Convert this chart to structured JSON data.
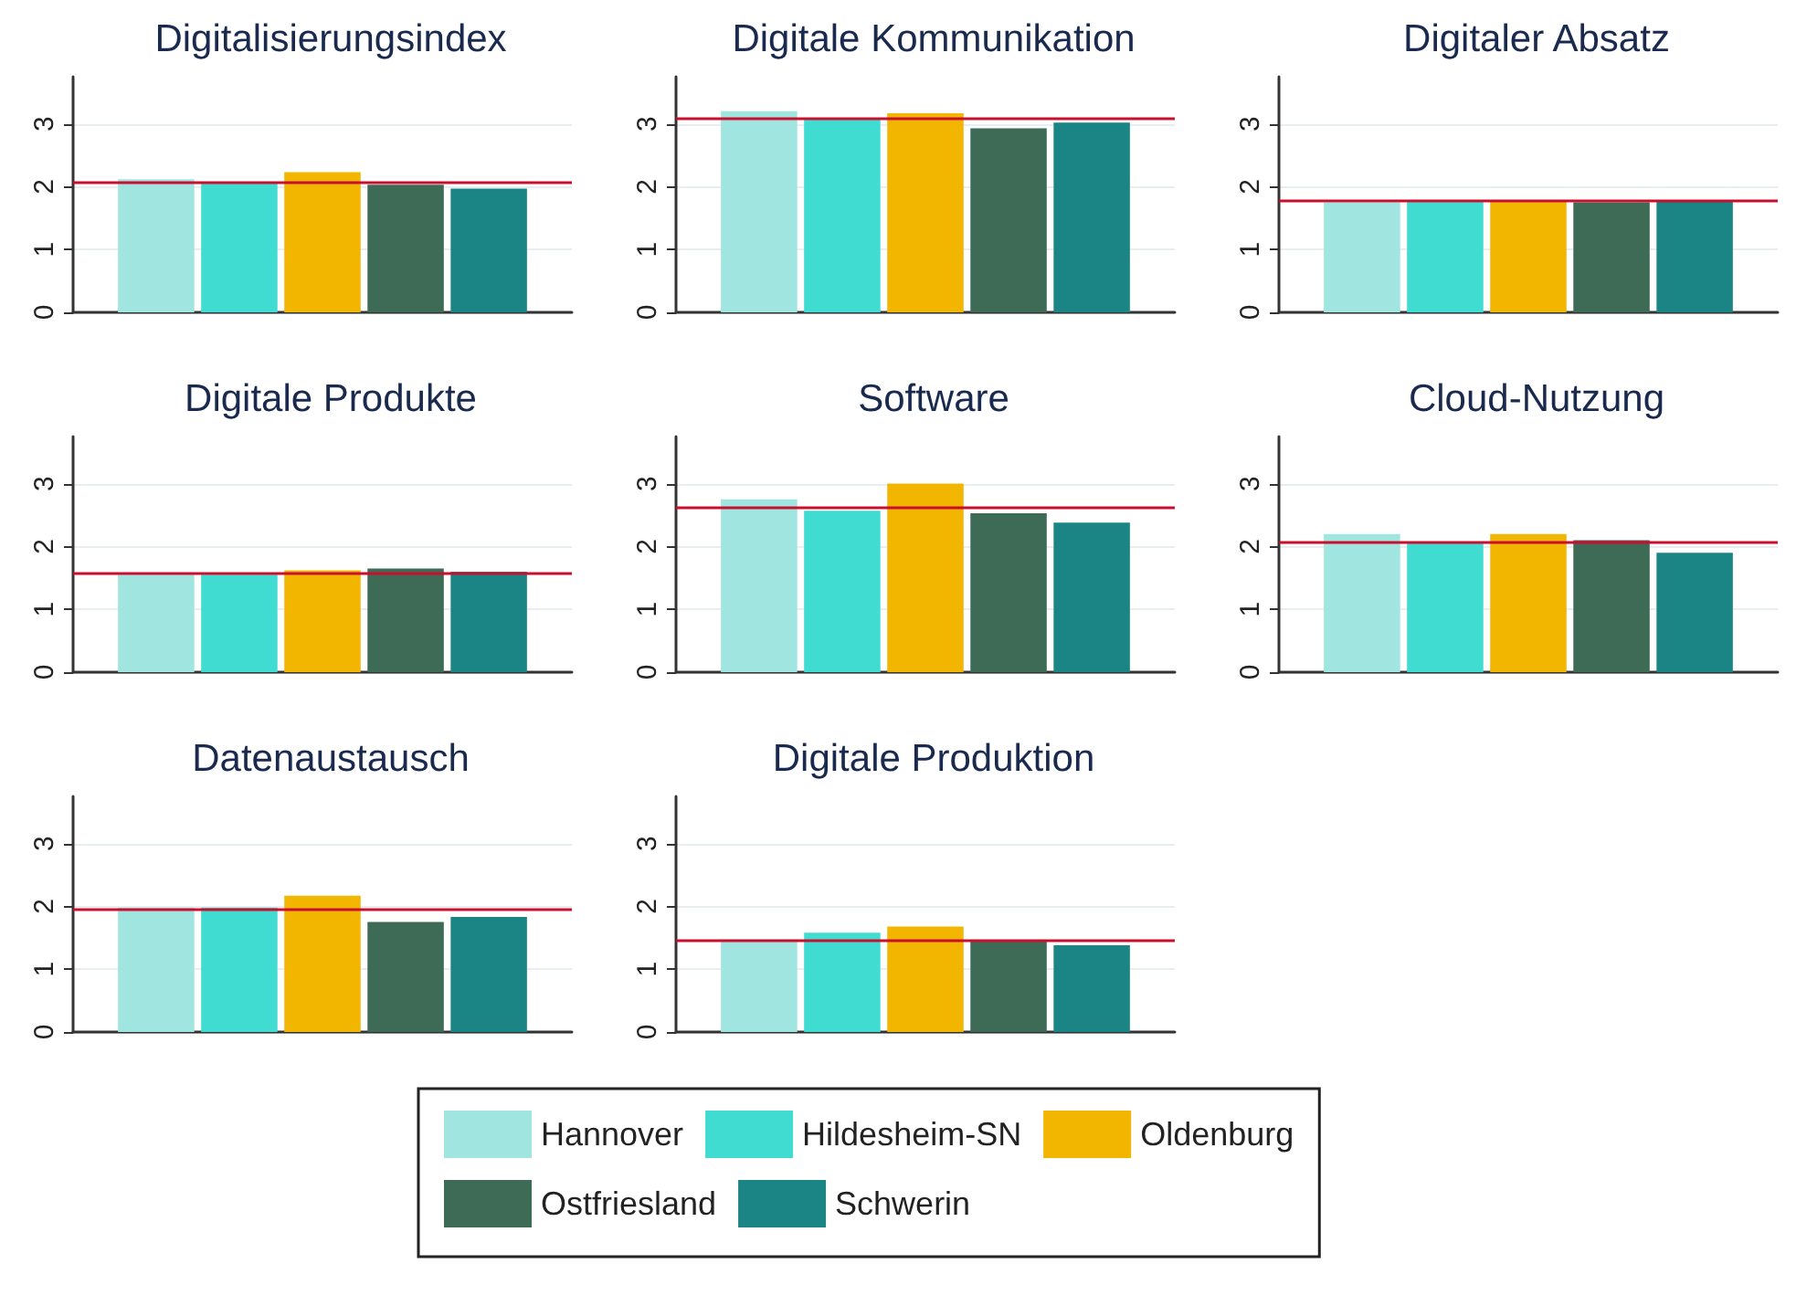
{
  "chart_data": [
    {
      "type": "bar",
      "title": "Digitalisierungsindex",
      "categories": [
        null
      ],
      "legend": "bottom",
      "tick_labels": "y",
      "grid": "y",
      "ylim": [
        0,
        3.75
      ],
      "yticks": [
        0,
        1,
        2,
        3
      ],
      "series": [
        {
          "name": "Hannover",
          "color": "#a0e5e0",
          "values": [
            2.12
          ]
        },
        {
          "name": "Hildesheim-SN",
          "color": "#40dcd2",
          "values": [
            2.08
          ]
        },
        {
          "name": "Oldenburg",
          "color": "#f2b500",
          "values": [
            2.23
          ]
        },
        {
          "name": "Ostfriesland",
          "color": "#3e6b55",
          "values": [
            2.03
          ]
        },
        {
          "name": "Schwerin",
          "color": "#1b8585",
          "values": [
            1.97
          ]
        }
      ],
      "ref_lines": [
        {
          "axis": "y",
          "value": 2.08,
          "color": "#c8102e"
        }
      ]
    },
    {
      "type": "bar",
      "title": "Digitale Kommunikation",
      "categories": [
        null
      ],
      "tick_labels": "y",
      "grid": "y",
      "ylim": [
        0,
        3.75
      ],
      "yticks": [
        0,
        1,
        2,
        3
      ],
      "series": [
        {
          "color": "#a0e5e0",
          "values": [
            3.2
          ]
        },
        {
          "color": "#40dcd2",
          "values": [
            3.07
          ]
        },
        {
          "color": "#f2b500",
          "values": [
            3.17
          ]
        },
        {
          "color": "#3e6b55",
          "values": [
            2.93
          ]
        },
        {
          "color": "#1b8585",
          "values": [
            3.02
          ]
        }
      ],
      "ref_lines": [
        {
          "axis": "y",
          "value": 3.1,
          "color": "#c8102e"
        }
      ]
    },
    {
      "type": "bar",
      "title": "Digitaler Absatz",
      "categories": [
        null
      ],
      "tick_labels": "y",
      "grid": "y",
      "ylim": [
        0,
        3.75
      ],
      "yticks": [
        0,
        1,
        2,
        3
      ],
      "series": [
        {
          "color": "#a0e5e0",
          "values": [
            1.75
          ]
        },
        {
          "color": "#40dcd2",
          "values": [
            1.78
          ]
        },
        {
          "color": "#f2b500",
          "values": [
            1.78
          ]
        },
        {
          "color": "#3e6b55",
          "values": [
            1.75
          ]
        },
        {
          "color": "#1b8585",
          "values": [
            1.78
          ]
        }
      ],
      "ref_lines": [
        {
          "axis": "y",
          "value": 1.77,
          "color": "#c8102e"
        }
      ]
    },
    {
      "type": "bar",
      "title": "Digitale Produkte",
      "categories": [
        null
      ],
      "tick_labels": "y",
      "grid": "y",
      "ylim": [
        0,
        3.75
      ],
      "yticks": [
        0,
        1,
        2,
        3
      ],
      "series": [
        {
          "color": "#a0e5e0",
          "values": [
            1.55
          ]
        },
        {
          "color": "#40dcd2",
          "values": [
            1.55
          ]
        },
        {
          "color": "#f2b500",
          "values": [
            1.62
          ]
        },
        {
          "color": "#3e6b55",
          "values": [
            1.65
          ]
        },
        {
          "color": "#1b8585",
          "values": [
            1.6
          ]
        }
      ],
      "ref_lines": [
        {
          "axis": "y",
          "value": 1.58,
          "color": "#c8102e"
        }
      ]
    },
    {
      "type": "bar",
      "title": "Software",
      "categories": [
        null
      ],
      "tick_labels": "y",
      "grid": "y",
      "ylim": [
        0,
        3.75
      ],
      "yticks": [
        0,
        1,
        2,
        3
      ],
      "series": [
        {
          "color": "#a0e5e0",
          "values": [
            2.75
          ]
        },
        {
          "color": "#40dcd2",
          "values": [
            2.57
          ]
        },
        {
          "color": "#f2b500",
          "values": [
            3.0
          ]
        },
        {
          "color": "#3e6b55",
          "values": [
            2.53
          ]
        },
        {
          "color": "#1b8585",
          "values": [
            2.38
          ]
        }
      ],
      "ref_lines": [
        {
          "axis": "y",
          "value": 2.63,
          "color": "#c8102e"
        }
      ]
    },
    {
      "type": "bar",
      "title": "Cloud-Nutzung",
      "categories": [
        null
      ],
      "tick_labels": "y",
      "grid": "y",
      "ylim": [
        0,
        3.75
      ],
      "yticks": [
        0,
        1,
        2,
        3
      ],
      "series": [
        {
          "color": "#a0e5e0",
          "values": [
            2.2
          ]
        },
        {
          "color": "#40dcd2",
          "values": [
            2.05
          ]
        },
        {
          "color": "#f2b500",
          "values": [
            2.2
          ]
        },
        {
          "color": "#3e6b55",
          "values": [
            2.1
          ]
        },
        {
          "color": "#1b8585",
          "values": [
            1.9
          ]
        }
      ],
      "ref_lines": [
        {
          "axis": "y",
          "value": 2.08,
          "color": "#c8102e"
        }
      ]
    },
    {
      "type": "bar",
      "title": "Datenaustausch",
      "categories": [
        null
      ],
      "tick_labels": "y",
      "grid": "y",
      "ylim": [
        0,
        3.75
      ],
      "yticks": [
        0,
        1,
        2,
        3
      ],
      "series": [
        {
          "color": "#a0e5e0",
          "values": [
            1.98
          ]
        },
        {
          "color": "#40dcd2",
          "values": [
            1.98
          ]
        },
        {
          "color": "#f2b500",
          "values": [
            2.17
          ]
        },
        {
          "color": "#3e6b55",
          "values": [
            1.75
          ]
        },
        {
          "color": "#1b8585",
          "values": [
            1.83
          ]
        }
      ],
      "ref_lines": [
        {
          "axis": "y",
          "value": 1.95,
          "color": "#c8102e"
        }
      ]
    },
    {
      "type": "bar",
      "title": "Digitale Produktion",
      "categories": [
        null
      ],
      "tick_labels": "y",
      "grid": "y",
      "ylim": [
        0,
        3.75
      ],
      "yticks": [
        0,
        1,
        2,
        3
      ],
      "series": [
        {
          "color": "#a0e5e0",
          "values": [
            1.47
          ]
        },
        {
          "color": "#40dcd2",
          "values": [
            1.58
          ]
        },
        {
          "color": "#f2b500",
          "values": [
            1.68
          ]
        },
        {
          "color": "#3e6b55",
          "values": [
            1.45
          ]
        },
        {
          "color": "#1b8585",
          "values": [
            1.38
          ]
        }
      ],
      "ref_lines": [
        {
          "axis": "y",
          "value": 1.47,
          "color": "#c8102e"
        }
      ]
    }
  ]
}
